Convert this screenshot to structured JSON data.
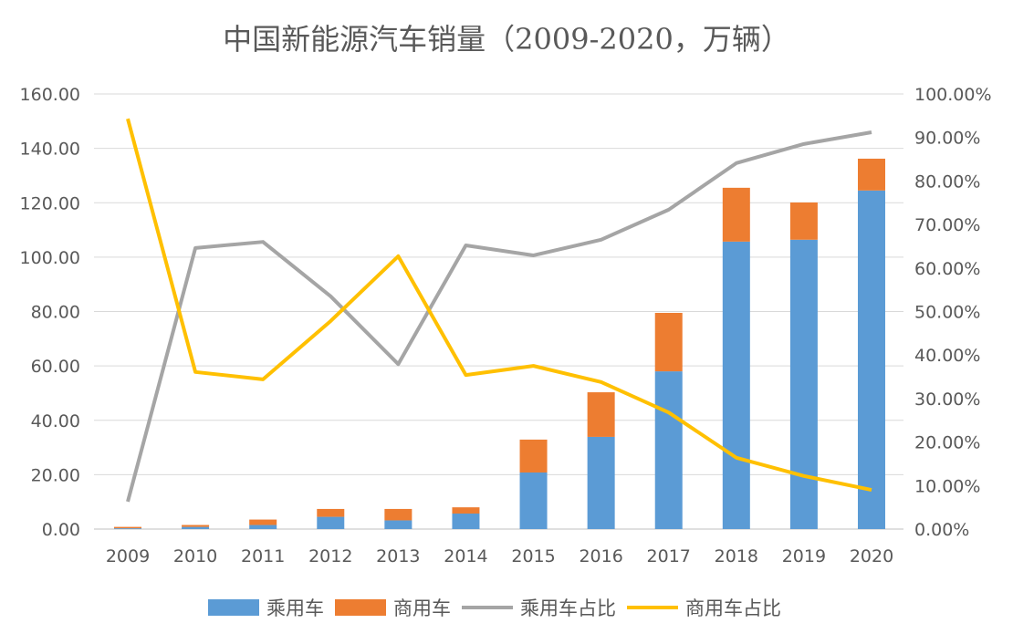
{
  "chart_data": {
    "type": "bar",
    "title": "中国新能源汽车销量（2009-2020，万辆）",
    "categories": [
      "2009",
      "2010",
      "2011",
      "2012",
      "2013",
      "2014",
      "2015",
      "2016",
      "2017",
      "2018",
      "2019",
      "2020"
    ],
    "stacked": true,
    "series": [
      {
        "name": "乘用车",
        "type": "bar",
        "axis": "left",
        "color": "#5B9BD5",
        "values": [
          0.3,
          0.8,
          1.5,
          4.5,
          3.2,
          5.7,
          20.8,
          33.9,
          58.0,
          105.7,
          106.4,
          124.5
        ]
      },
      {
        "name": "商用车",
        "type": "bar",
        "axis": "left",
        "color": "#ED7D31",
        "values": [
          0.5,
          0.7,
          2.0,
          2.9,
          4.2,
          2.3,
          12.1,
          16.4,
          21.5,
          19.8,
          13.7,
          11.7
        ]
      },
      {
        "name": "乘用车占比",
        "type": "line",
        "axis": "right",
        "color": "#A5A5A5",
        "values": [
          6.3,
          64.6,
          66.0,
          53.5,
          37.9,
          65.2,
          62.9,
          66.5,
          73.4,
          84.1,
          88.5,
          91.2
        ]
      },
      {
        "name": "商用车占比",
        "type": "line",
        "axis": "right",
        "color": "#FFC000",
        "values": [
          94.3,
          36.1,
          34.4,
          47.8,
          62.7,
          35.4,
          37.5,
          33.8,
          26.8,
          16.4,
          12.2,
          9.0
        ]
      }
    ],
    "ylim": [
      0,
      160
    ],
    "yticks": [
      "0.00",
      "20.00",
      "40.00",
      "60.00",
      "80.00",
      "100.00",
      "120.00",
      "140.00",
      "160.00"
    ],
    "y2lim": [
      0,
      100
    ],
    "y2ticks": [
      "0.00%",
      "10.00%",
      "20.00%",
      "30.00%",
      "40.00%",
      "50.00%",
      "60.00%",
      "70.00%",
      "80.00%",
      "90.00%",
      "100.00%"
    ],
    "grid": true,
    "legend_position": "bottom"
  }
}
